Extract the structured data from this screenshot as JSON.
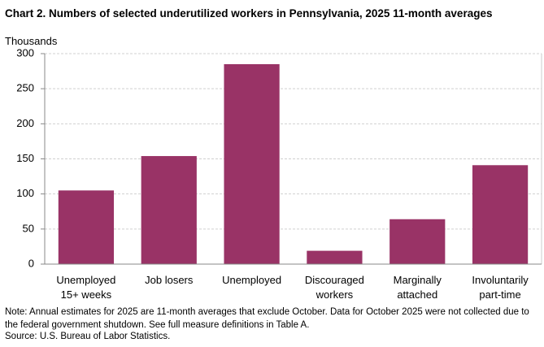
{
  "chart_data": {
    "type": "bar",
    "title": "Chart 2. Numbers of selected underutilized workers in Pennsylvania, 2025 11-month averages",
    "y_axis_label": "Thousands",
    "categories": [
      "Unemployed 15+ weeks",
      "Job losers",
      "Unemployed",
      "Discouraged workers",
      "Marginally attached",
      "Involuntarily part-time"
    ],
    "values": [
      105,
      154,
      285,
      19,
      64,
      141
    ],
    "color": "#993366",
    "ylim": [
      0,
      300
    ],
    "yticks": [
      0,
      50,
      100,
      150,
      200,
      250,
      300
    ],
    "grid": true,
    "note": "Note:  Annual estimates for 2025 are 11-month averages that exclude October. Data for October 2025 were not collected due to the federal government shutdown. See full measure definitions in Table A.",
    "source": "Source: U.S. Bureau of Labor Statistics."
  }
}
